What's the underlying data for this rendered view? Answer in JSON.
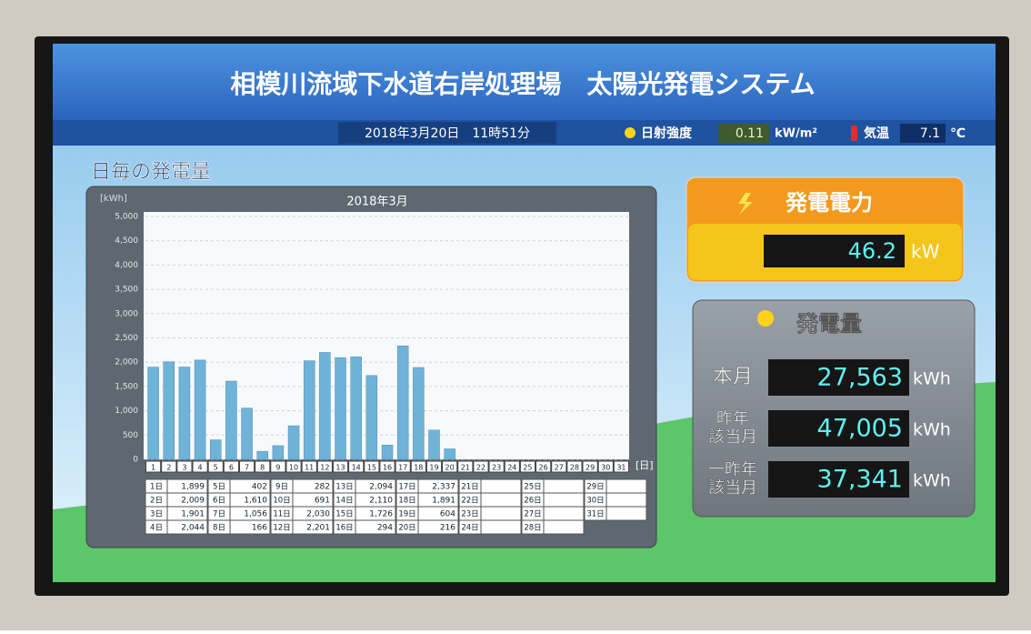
{
  "header": {
    "title": "相模川流域下水道右岸処理場　太陽光発電システム",
    "datetime": "2018年3月20日　11時51分",
    "irradiance_label": "日射強度",
    "irradiance": 0.11,
    "irradiance_unit": "kW/m²",
    "temp_label": "気温",
    "temp": 7.1,
    "temp_unit": "℃"
  },
  "chart_data": {
    "type": "bar",
    "title": "日毎の発電量",
    "subtitle": "2018年3月",
    "y_label": "[kWh]",
    "x_label": "[日]",
    "categories": [
      "1",
      "2",
      "3",
      "4",
      "5",
      "6",
      "7",
      "8",
      "9",
      "10",
      "11",
      "12",
      "13",
      "14",
      "15",
      "16",
      "17",
      "18",
      "19",
      "20",
      "21",
      "22",
      "23",
      "24",
      "25",
      "26",
      "27",
      "28",
      "29",
      "30",
      "31"
    ],
    "values": [
      1899,
      2009,
      1901,
      2044,
      402,
      1610,
      1056,
      166,
      282,
      691,
      2030,
      2201,
      2094,
      2110,
      1726,
      294,
      2337,
      1891,
      604,
      216,
      null,
      null,
      null,
      null,
      null,
      null,
      null,
      null,
      null,
      null,
      null
    ],
    "value_labels": [
      "1,899",
      "2,009",
      "1,901",
      "2,044",
      "402",
      "1,610",
      "1,056",
      "166",
      "282",
      "691",
      "2,030",
      "2,201",
      "2,094",
      "2,110",
      "1,726",
      "294",
      "2,337",
      "1,891",
      "604",
      "216",
      null,
      null,
      null,
      null,
      null,
      null,
      null,
      null,
      null,
      null,
      null
    ],
    "color": "#6fb3d9",
    "grid": true,
    "ylim": [
      0,
      5000
    ],
    "yticks": [
      0,
      500,
      {
        "value": 1000,
        "label": "1,000"
      },
      {
        "value": 1500,
        "label": "1,500"
      },
      {
        "value": 2000,
        "label": "2,000"
      },
      {
        "value": 2500,
        "label": "2,500"
      },
      {
        "value": 3000,
        "label": "3,000"
      },
      {
        "value": 3500,
        "label": "3,500"
      },
      {
        "value": 4000,
        "label": "4,000"
      },
      {
        "value": 4500,
        "label": "4,500"
      },
      {
        "value": 5000,
        "label": "5,000"
      }
    ]
  },
  "table": {
    "day_labels": [
      "1日",
      "2日",
      "3日",
      "4日",
      "5日",
      "6日",
      "7日",
      "8日",
      "9日",
      "10日",
      "11日",
      "12日",
      "13日",
      "14日",
      "15日",
      "16日",
      "17日",
      "18日",
      "19日",
      "20日",
      "21日",
      "22日",
      "23日",
      "24日",
      "25日",
      "26日",
      "27日",
      "28日",
      "29日",
      "30日",
      "31日"
    ]
  },
  "power_panel": {
    "title": "発電電力",
    "value": 46.2,
    "unit": "kW"
  },
  "energy_panel": {
    "title": "発電量",
    "rows": [
      {
        "label": [
          "本月"
        ],
        "value": "27,563",
        "unit": "kWh"
      },
      {
        "label": [
          "昨年",
          "該当月"
        ],
        "value": "47,005",
        "unit": "kWh"
      },
      {
        "label": [
          "一昨年",
          "該当月"
        ],
        "value": "37,341",
        "unit": "kWh"
      }
    ]
  }
}
